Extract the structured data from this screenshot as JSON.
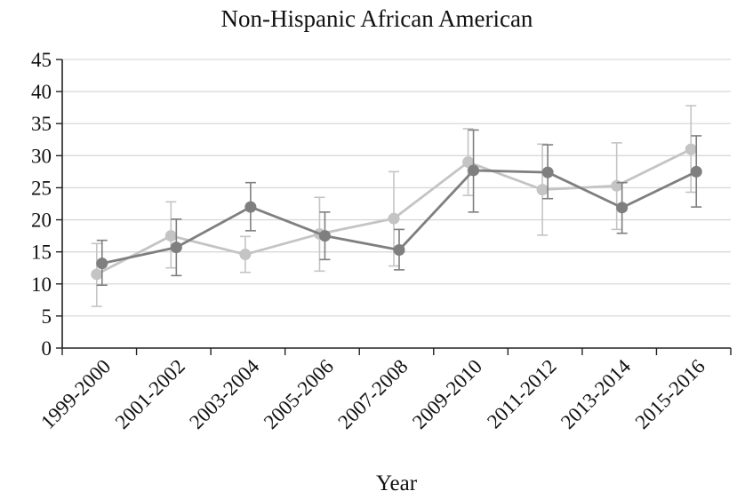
{
  "chart_data": {
    "type": "line",
    "title": "Non-Hispanic African American",
    "xlabel": "Year",
    "ylabel": "",
    "categories": [
      "1999-2000",
      "2001-2002",
      "2003-2004",
      "2005-2006",
      "2007-2008",
      "2009-2010",
      "2011-2012",
      "2013-2014",
      "2015-2016"
    ],
    "ylim": [
      0,
      45
    ],
    "yticks": [
      0,
      5,
      10,
      15,
      20,
      25,
      30,
      35,
      40,
      45
    ],
    "grid": true,
    "legend": "none",
    "series": [
      {
        "color": "#c4c4c4",
        "values": [
          11.5,
          17.5,
          14.6,
          17.8,
          20.2,
          29.0,
          24.7,
          25.3,
          31.0
        ],
        "error_low": [
          6.5,
          12.5,
          11.8,
          12.0,
          12.8,
          23.8,
          17.6,
          18.5,
          24.3
        ],
        "error_high": [
          16.3,
          22.8,
          17.4,
          23.5,
          27.5,
          34.2,
          31.8,
          32.0,
          37.8
        ]
      },
      {
        "color": "#7f7f7f",
        "values": [
          13.2,
          15.7,
          22.0,
          17.5,
          15.3,
          27.7,
          27.4,
          21.9,
          27.5
        ],
        "error_low": [
          9.8,
          11.3,
          18.3,
          13.8,
          12.2,
          21.2,
          23.3,
          17.9,
          22.0
        ],
        "error_high": [
          16.8,
          20.1,
          25.8,
          21.2,
          18.5,
          34.0,
          31.7,
          25.8,
          33.1
        ]
      }
    ]
  }
}
